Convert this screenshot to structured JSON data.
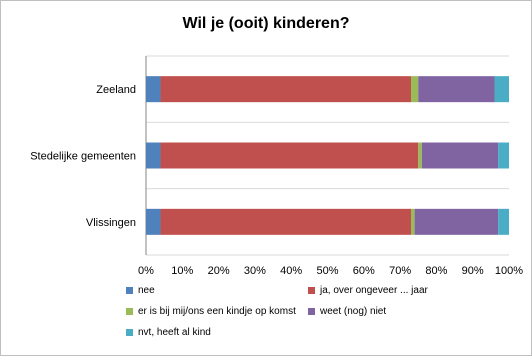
{
  "chart_data": {
    "type": "bar",
    "orientation": "horizontal",
    "stacked": "percent",
    "title": "Wil je (ooit) kinderen?",
    "categories": [
      "Zeeland",
      "Stedelijke gemeenten",
      "Vlissingen"
    ],
    "series": [
      {
        "name": "nee",
        "color": "#4f81bd",
        "values": [
          4,
          4,
          4
        ]
      },
      {
        "name": "ja, over ongeveer ... jaar",
        "color": "#c0504d",
        "values": [
          69,
          71,
          69
        ]
      },
      {
        "name": "er is bij mij/ons een kindje op komst",
        "color": "#9bbb59",
        "values": [
          2,
          1,
          1
        ]
      },
      {
        "name": "weet (nog) niet",
        "color": "#8064a2",
        "values": [
          21,
          21,
          23
        ]
      },
      {
        "name": "nvt, heeft al kind",
        "color": "#4bacc6",
        "values": [
          4,
          3,
          3
        ]
      }
    ],
    "x_ticks": [
      "0%",
      "10%",
      "20%",
      "30%",
      "40%",
      "50%",
      "60%",
      "70%",
      "80%",
      "90%",
      "100%"
    ],
    "xlim": [
      0,
      100
    ],
    "grid": "horizontal category separators",
    "legend_position": "bottom"
  }
}
